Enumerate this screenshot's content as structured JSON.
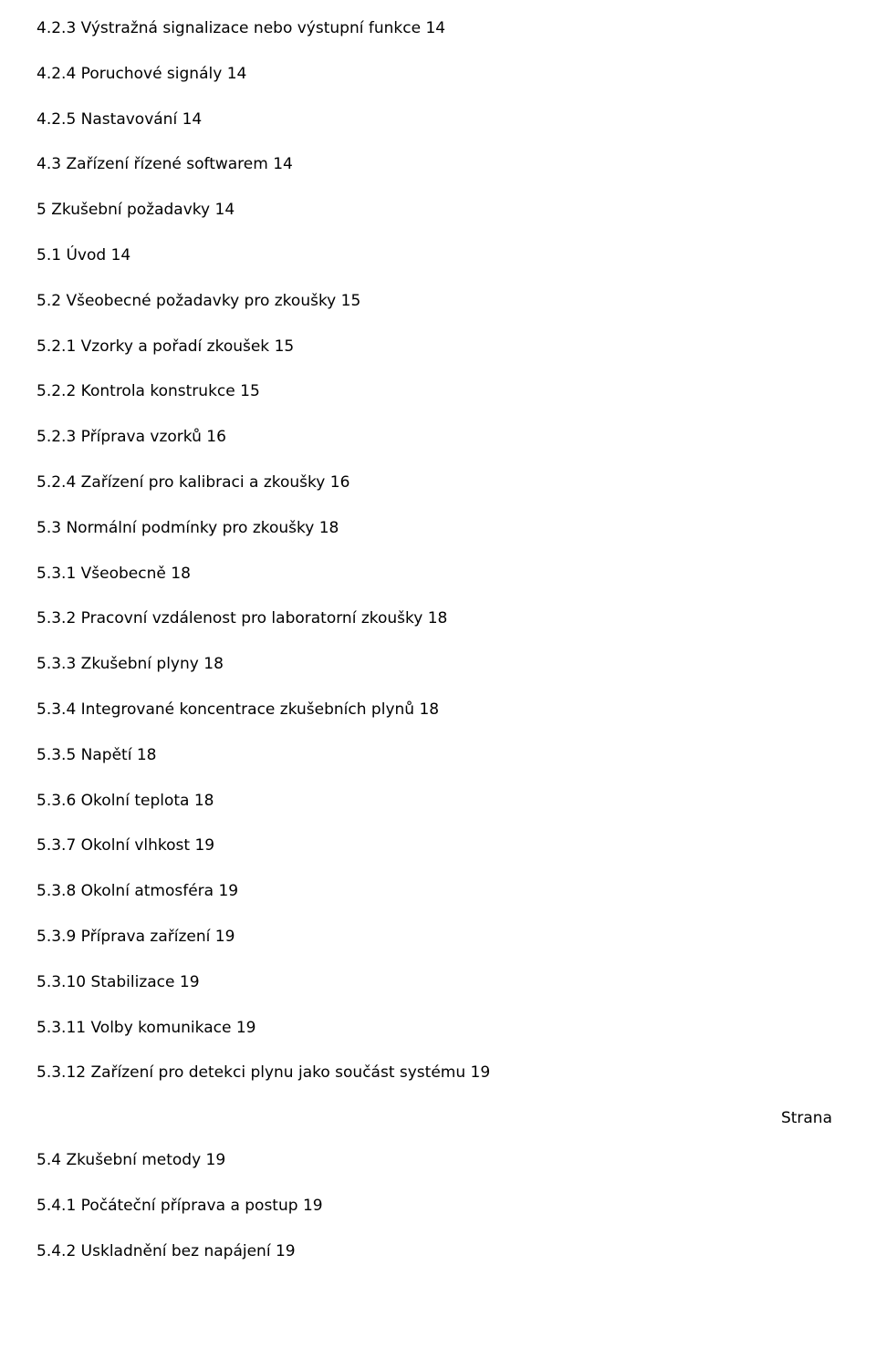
{
  "entries": [
    {
      "num": "4.2.3",
      "title": "Výstražná signalizace nebo výstupní funkce",
      "page": "14"
    },
    {
      "num": "4.2.4",
      "title": "Poruchové signály",
      "page": "14"
    },
    {
      "num": "4.2.5",
      "title": "Nastavování",
      "page": "14"
    },
    {
      "num": "4.3",
      "title": "Zařízení řízené softwarem",
      "page": "14"
    },
    {
      "num": "5",
      "title": "Zkušební požadavky",
      "page": "14"
    },
    {
      "num": "5.1",
      "title": "Úvod",
      "page": "14"
    },
    {
      "num": "5.2",
      "title": "Všeobecné požadavky pro zkoušky",
      "page": "15"
    },
    {
      "num": "5.2.1",
      "title": "Vzorky a pořadí zkoušek",
      "page": "15"
    },
    {
      "num": "5.2.2",
      "title": "Kontrola konstrukce",
      "page": "15"
    },
    {
      "num": "5.2.3",
      "title": "Příprava vzorků",
      "page": "16"
    },
    {
      "num": "5.2.4",
      "title": "Zařízení pro kalibraci a zkoušky",
      "page": "16"
    },
    {
      "num": "5.3",
      "title": "Normální podmínky pro zkoušky",
      "page": "18"
    },
    {
      "num": "5.3.1",
      "title": "Všeobecně",
      "page": "18"
    },
    {
      "num": "5.3.2",
      "title": "Pracovní vzdálenost pro laboratorní zkoušky",
      "page": "18"
    },
    {
      "num": "5.3.3",
      "title": "Zkušební plyny",
      "page": "18"
    },
    {
      "num": "5.3.4",
      "title": "Integrované koncentrace zkušebních plynů",
      "page": "18"
    },
    {
      "num": "5.3.5",
      "title": "Napětí",
      "page": "18"
    },
    {
      "num": "5.3.6",
      "title": "Okolní teplota",
      "page": "18"
    },
    {
      "num": "5.3.7",
      "title": "Okolní vlhkost",
      "page": "19"
    },
    {
      "num": "5.3.8",
      "title": "Okolní atmosféra",
      "page": "19"
    },
    {
      "num": "5.3.9",
      "title": "Příprava zařízení",
      "page": "19"
    },
    {
      "num": "5.3.10",
      "title": "Stabilizace",
      "page": "19"
    },
    {
      "num": "5.3.11",
      "title": "Volby komunikace",
      "page": "19"
    },
    {
      "num": "5.3.12",
      "title": "Zařízení pro detekci plynu jako součást systému",
      "page": "19"
    }
  ],
  "page_label": "Strana",
  "tail": [
    {
      "num": "5.4",
      "title": "Zkušební metody",
      "page": "19"
    },
    {
      "num": "5.4.1",
      "title": "Počáteční příprava a postup",
      "page": "19"
    },
    {
      "num": "5.4.2",
      "title": "Uskladnění bez napájení",
      "page": "19"
    }
  ]
}
